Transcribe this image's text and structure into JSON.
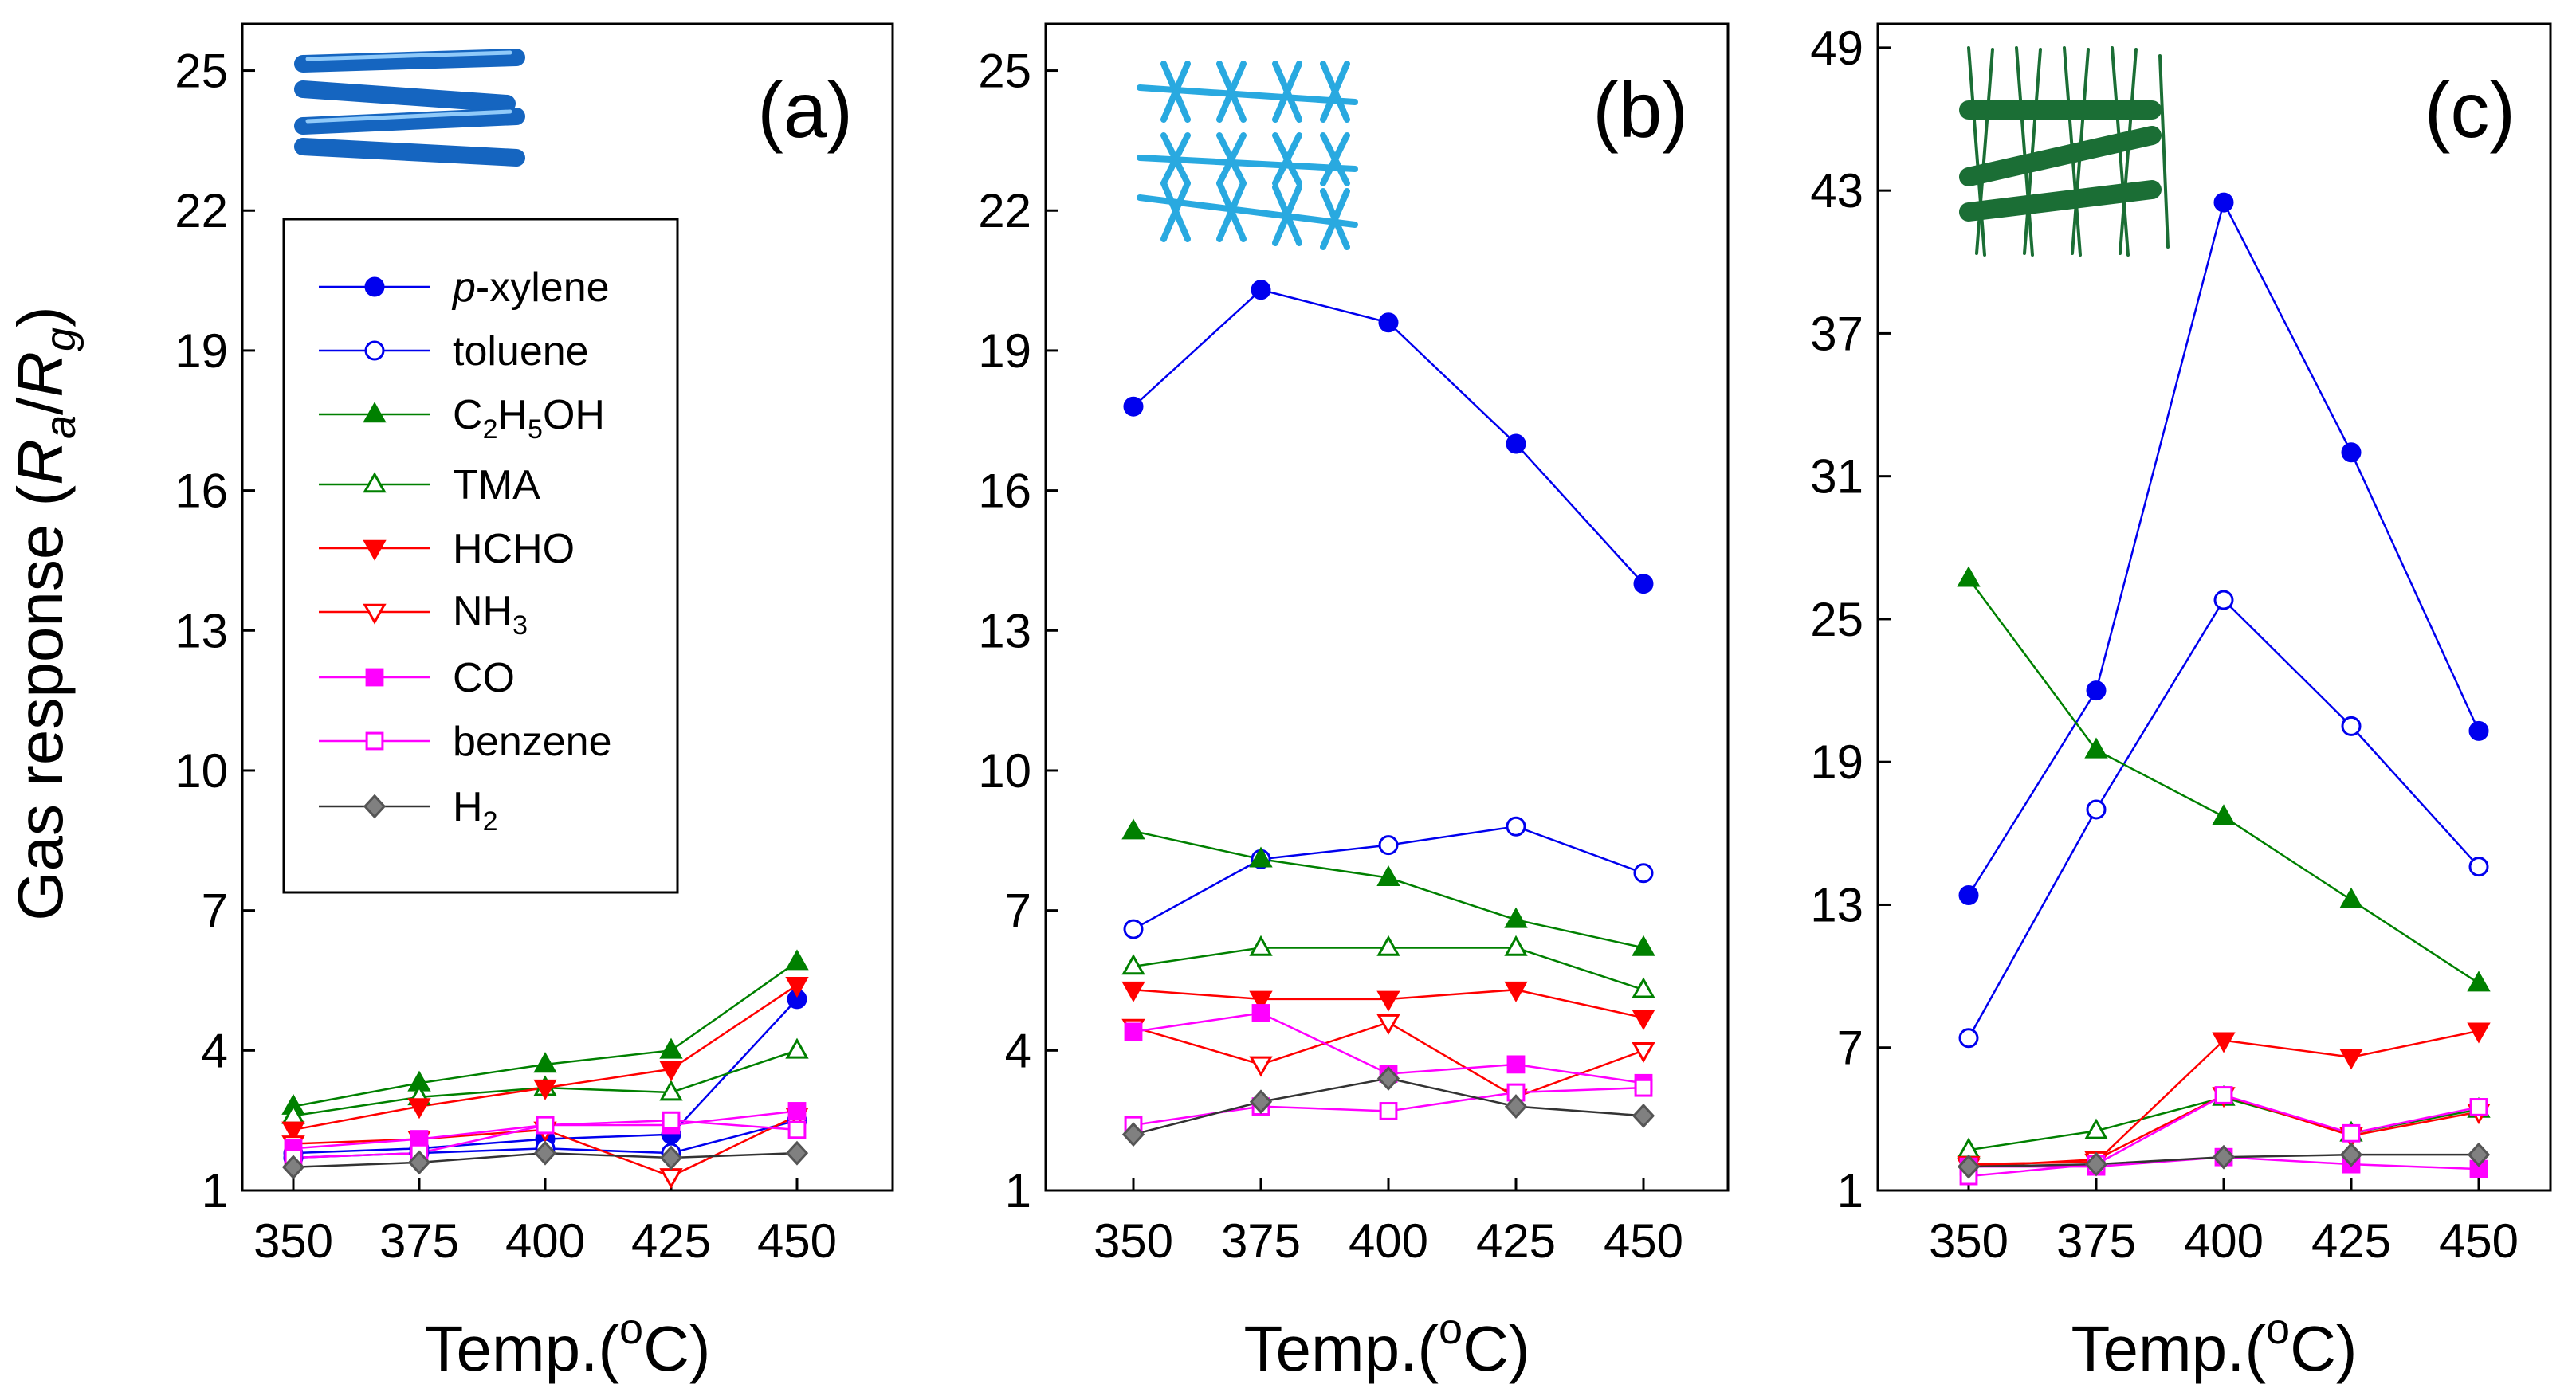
{
  "figure": {
    "ylabel": {
      "prefix": "Gas response (",
      "r1": "R",
      "s1": "a",
      "slash": "/",
      "r2": "R",
      "s2": "g",
      "suffix": ")"
    },
    "xlabel": {
      "prefix": "Temp.(",
      "sup": "o",
      "suffix": "C)"
    }
  },
  "legend": [
    {
      "key": "pxylene",
      "label_main": "p",
      "label_rest": "-xylene"
    },
    {
      "key": "toluene",
      "label_main": "toluene"
    },
    {
      "key": "c2h5oh",
      "label_main": "C",
      "sub1": "2",
      "mid": "H",
      "sub2": "5",
      "rest": "OH"
    },
    {
      "key": "tma",
      "label_main": "TMA"
    },
    {
      "key": "hcho",
      "label_main": "HCHO"
    },
    {
      "key": "nh3",
      "label_main": "NH",
      "sub1": "3"
    },
    {
      "key": "co",
      "label_main": "CO"
    },
    {
      "key": "benzene",
      "label_main": "benzene"
    },
    {
      "key": "h2",
      "label_main": "H",
      "sub1": "2"
    }
  ],
  "series_style": {
    "pxylene": {
      "color": "#0000ee",
      "marker": "circle",
      "filled": true
    },
    "toluene": {
      "color": "#0000ee",
      "marker": "circle",
      "filled": false
    },
    "c2h5oh": {
      "color": "#008000",
      "marker": "triangle-up",
      "filled": true
    },
    "tma": {
      "color": "#008000",
      "marker": "triangle-up",
      "filled": false
    },
    "hcho": {
      "color": "#ff0000",
      "marker": "triangle-down",
      "filled": true
    },
    "nh3": {
      "color": "#ff0000",
      "marker": "triangle-down",
      "filled": false
    },
    "co": {
      "color": "#ff00ff",
      "marker": "square",
      "filled": true
    },
    "benzene": {
      "color": "#ff00ff",
      "marker": "square",
      "filled": false
    },
    "h2": {
      "color": "#333333",
      "marker": "diamond",
      "filled": true
    },
    "inset_a_color": "#1565c0",
    "inset_b_color": "#29a9e0",
    "inset_c_color": "#1b6e35"
  },
  "chart_data": [
    {
      "type": "line",
      "panel": "(a)",
      "x": [
        350,
        375,
        400,
        425,
        450
      ],
      "ylim": [
        1,
        26
      ],
      "yticks": [
        1,
        4,
        7,
        10,
        13,
        16,
        19,
        22,
        25
      ],
      "legend": "left-middle",
      "grid": false,
      "series": [
        {
          "key": "pxylene",
          "name": "p-xylene",
          "values": [
            1.8,
            1.9,
            2.1,
            2.2,
            5.1
          ]
        },
        {
          "key": "toluene",
          "name": "toluene",
          "values": [
            1.7,
            1.8,
            1.9,
            1.8,
            2.5
          ]
        },
        {
          "key": "c2h5oh",
          "name": "C2H5OH",
          "values": [
            2.8,
            3.3,
            3.7,
            4.0,
            5.9
          ]
        },
        {
          "key": "tma",
          "name": "TMA",
          "values": [
            2.6,
            3.0,
            3.2,
            3.1,
            4.0
          ]
        },
        {
          "key": "hcho",
          "name": "HCHO",
          "values": [
            2.3,
            2.8,
            3.2,
            3.6,
            5.4
          ]
        },
        {
          "key": "nh3",
          "name": "NH3",
          "values": [
            2.0,
            2.1,
            2.3,
            1.3,
            2.6
          ]
        },
        {
          "key": "co",
          "name": "CO",
          "values": [
            1.9,
            2.1,
            2.4,
            2.4,
            2.7
          ]
        },
        {
          "key": "benzene",
          "name": "benzene",
          "values": [
            1.7,
            1.8,
            2.4,
            2.5,
            2.3
          ]
        },
        {
          "key": "h2",
          "name": "H2",
          "values": [
            1.5,
            1.6,
            1.8,
            1.7,
            1.8
          ]
        }
      ]
    },
    {
      "type": "line",
      "panel": "(b)",
      "x": [
        350,
        375,
        400,
        425,
        450
      ],
      "ylim": [
        1,
        26
      ],
      "yticks": [
        1,
        4,
        7,
        10,
        13,
        16,
        19,
        22,
        25
      ],
      "grid": false,
      "series": [
        {
          "key": "pxylene",
          "name": "p-xylene",
          "values": [
            17.8,
            20.3,
            19.6,
            17.0,
            14.0
          ]
        },
        {
          "key": "toluene",
          "name": "toluene",
          "values": [
            6.6,
            8.1,
            8.4,
            8.8,
            7.8
          ]
        },
        {
          "key": "c2h5oh",
          "name": "C2H5OH",
          "values": [
            8.7,
            8.1,
            7.7,
            6.8,
            6.2
          ]
        },
        {
          "key": "tma",
          "name": "TMA",
          "values": [
            5.8,
            6.2,
            6.2,
            6.2,
            5.3
          ]
        },
        {
          "key": "hcho",
          "name": "HCHO",
          "values": [
            5.3,
            5.1,
            5.1,
            5.3,
            4.7
          ]
        },
        {
          "key": "nh3",
          "name": "NH3",
          "values": [
            4.5,
            3.7,
            4.6,
            3.0,
            4.0
          ]
        },
        {
          "key": "co",
          "name": "CO",
          "values": [
            4.4,
            4.8,
            3.5,
            3.7,
            3.3
          ]
        },
        {
          "key": "benzene",
          "name": "benzene",
          "values": [
            2.4,
            2.8,
            2.7,
            3.1,
            3.2
          ]
        },
        {
          "key": "h2",
          "name": "H2",
          "values": [
            2.2,
            2.9,
            3.4,
            2.8,
            2.6
          ]
        }
      ]
    },
    {
      "type": "line",
      "panel": "(c)",
      "x": [
        350,
        375,
        400,
        425,
        450
      ],
      "ylim": [
        1,
        50
      ],
      "yticks": [
        1,
        7,
        13,
        19,
        25,
        31,
        37,
        43,
        49
      ],
      "grid": false,
      "series": [
        {
          "key": "pxylene",
          "name": "p-xylene",
          "values": [
            13.4,
            22.0,
            42.5,
            32.0,
            20.3
          ]
        },
        {
          "key": "toluene",
          "name": "toluene",
          "values": [
            7.4,
            17.0,
            25.8,
            20.5,
            14.6
          ]
        },
        {
          "key": "c2h5oh",
          "name": "C2H5OH",
          "values": [
            26.7,
            19.5,
            16.7,
            13.2,
            9.7
          ]
        },
        {
          "key": "tma",
          "name": "TMA",
          "values": [
            2.7,
            3.5,
            4.9,
            3.4,
            4.4
          ]
        },
        {
          "key": "hcho",
          "name": "HCHO",
          "values": [
            2.1,
            2.2,
            7.3,
            6.6,
            7.7
          ]
        },
        {
          "key": "nh3",
          "name": "NH3",
          "values": [
            2.0,
            2.3,
            5.0,
            3.3,
            4.3
          ]
        },
        {
          "key": "co",
          "name": "CO",
          "values": [
            2.0,
            2.0,
            2.4,
            2.1,
            1.9
          ]
        },
        {
          "key": "benzene",
          "name": "benzene",
          "values": [
            1.6,
            2.1,
            5.0,
            3.4,
            4.5
          ]
        },
        {
          "key": "h2",
          "name": "H2",
          "values": [
            2.0,
            2.1,
            2.4,
            2.5,
            2.5
          ]
        }
      ]
    }
  ]
}
